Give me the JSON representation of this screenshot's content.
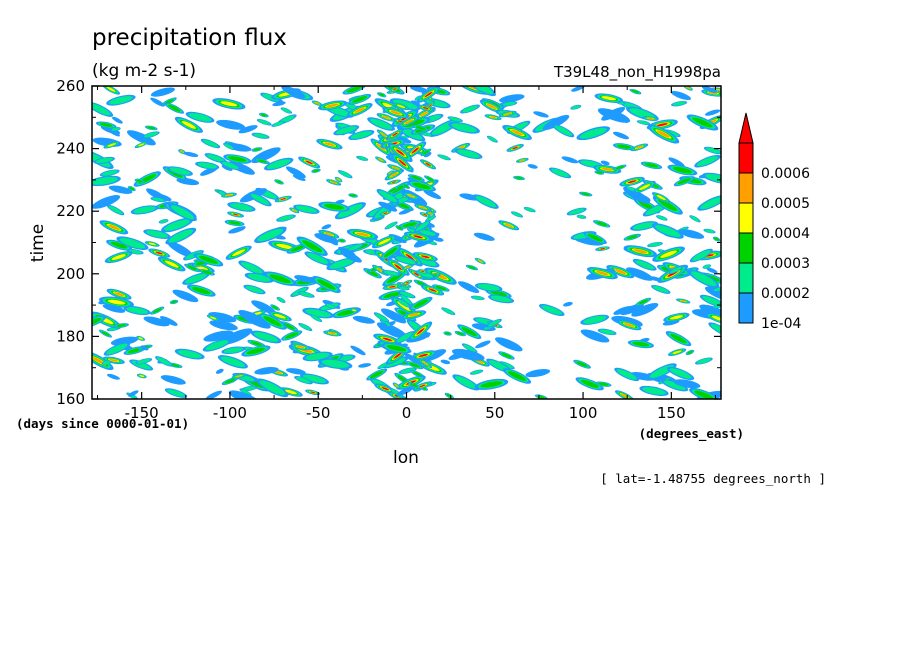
{
  "chart_data": {
    "type": "heatmap",
    "title": "precipitation flux",
    "units": "(kg m-2 s-1)",
    "experiment": "T39L48_non_H1998pa",
    "xlabel": "lon",
    "x_units": "(degrees_east)",
    "ylabel": "time",
    "y_units": "(days since 0000-01-01)",
    "xlim": [
      -178.125,
      178.125
    ],
    "ylim": [
      160,
      260
    ],
    "x_ticks": [
      "-150",
      "-100",
      "-50",
      "0",
      "50",
      "100",
      "150"
    ],
    "y_ticks": [
      "160",
      "180",
      "200",
      "220",
      "240",
      "260"
    ],
    "note": "[ lat=-1.48755 degrees_north ]",
    "grid": false,
    "legend_position": "right",
    "colorbar": {
      "levels": [
        "1e-04",
        "0.0002",
        "0.0003",
        "0.0004",
        "0.0005",
        "0.0006"
      ],
      "colors": [
        "#1e9bff",
        "#00eb8c",
        "#00d200",
        "#ffff00",
        "#ffa000",
        "#ff0000"
      ]
    }
  }
}
